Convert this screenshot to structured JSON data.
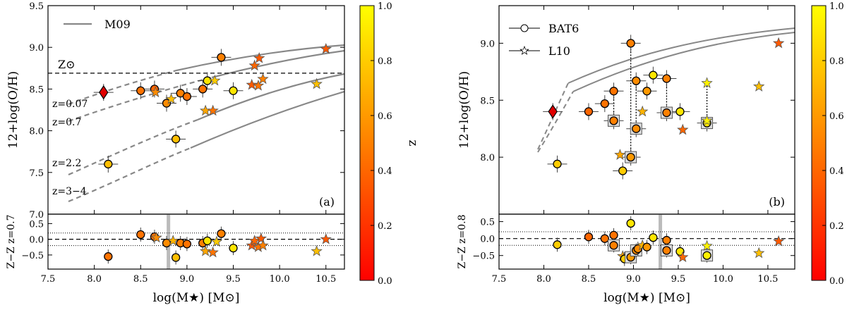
{
  "chart_data": [
    {
      "type": "scatter",
      "panel_label": "(a)",
      "top": {
        "xlim": [
          7.5,
          10.7
        ],
        "ylim": [
          7.0,
          9.5
        ],
        "ylabel": "12+log(O/H)",
        "x_ticks": [
          "7.5",
          "8.0",
          "8.5",
          "9.0",
          "9.5",
          "10.0",
          "10.5"
        ],
        "y_ticks": [
          {
            "v": 7.0,
            "t": "7.0"
          },
          {
            "v": 7.5,
            "t": "7.5"
          },
          {
            "v": 8.0,
            "t": "8.0"
          },
          {
            "v": 8.5,
            "t": "8.5"
          },
          {
            "v": 9.0,
            "t": "9.0"
          },
          {
            "v": 9.5,
            "t": "9.5"
          }
        ],
        "solar_line": {
          "y": 8.69,
          "label": "Z⊙"
        },
        "legend": [
          {
            "name": "M09",
            "marker": "line"
          }
        ],
        "curve_labels": [
          "z=0.07",
          "z=0.7",
          "z=2.2",
          "z=3−4"
        ],
        "series": [
          {
            "name": "circles",
            "points": [
              {
                "x": 8.5,
                "y": 8.48,
                "z": 0.45
              },
              {
                "x": 8.65,
                "y": 8.5,
                "z": 0.4
              },
              {
                "x": 8.78,
                "y": 8.33,
                "z": 0.55
              },
              {
                "x": 8.93,
                "y": 8.45,
                "z": 0.5
              },
              {
                "x": 9.0,
                "y": 8.41,
                "z": 0.45
              },
              {
                "x": 9.17,
                "y": 8.5,
                "z": 0.45
              },
              {
                "x": 9.22,
                "y": 8.6,
                "z": 0.9
              },
              {
                "x": 9.37,
                "y": 8.88,
                "z": 0.5
              },
              {
                "x": 9.5,
                "y": 8.48,
                "z": 0.9
              },
              {
                "x": 8.88,
                "y": 7.9,
                "z": 0.75
              },
              {
                "x": 8.15,
                "y": 7.6,
                "z": 0.75
              }
            ]
          },
          {
            "name": "stars",
            "points": [
              {
                "x": 8.66,
                "y": 8.46,
                "z": 0.55
              },
              {
                "x": 8.83,
                "y": 8.38,
                "z": 0.75
              },
              {
                "x": 9.2,
                "y": 8.24,
                "z": 0.65
              },
              {
                "x": 9.28,
                "y": 8.24,
                "z": 0.45
              },
              {
                "x": 9.3,
                "y": 8.6,
                "z": 0.8
              },
              {
                "x": 9.7,
                "y": 8.55,
                "z": 0.35
              },
              {
                "x": 9.73,
                "y": 8.78,
                "z": 0.4
              },
              {
                "x": 9.77,
                "y": 8.54,
                "z": 0.45
              },
              {
                "x": 9.78,
                "y": 8.87,
                "z": 0.35
              },
              {
                "x": 9.82,
                "y": 8.62,
                "z": 0.5
              },
              {
                "x": 10.4,
                "y": 8.56,
                "z": 0.75
              },
              {
                "x": 10.5,
                "y": 8.98,
                "z": 0.35
              }
            ]
          },
          {
            "name": "diamond",
            "points": [
              {
                "x": 8.1,
                "y": 8.46,
                "z": 0.07
              }
            ]
          }
        ]
      },
      "bottom": {
        "ylabel": "Z−Z z=0.7",
        "ylim": [
          -0.95,
          0.8
        ],
        "y_ticks": [
          {
            "v": 0.5,
            "t": "0.5"
          },
          {
            "v": 0.0,
            "t": "0.0"
          },
          {
            "v": -0.5,
            "t": "−0.5"
          }
        ],
        "vline_x": 8.8,
        "xlabel": "log(M★) [M⊙]",
        "points": [
          {
            "x": 8.5,
            "y": 0.15,
            "z": 0.45,
            "m": "c"
          },
          {
            "x": 8.65,
            "y": 0.08,
            "z": 0.45,
            "m": "c"
          },
          {
            "x": 8.67,
            "y": 0.05,
            "z": 0.55,
            "m": "s"
          },
          {
            "x": 8.78,
            "y": -0.12,
            "z": 0.55,
            "m": "c"
          },
          {
            "x": 8.85,
            "y": -0.05,
            "z": 0.7,
            "m": "s"
          },
          {
            "x": 8.88,
            "y": -0.58,
            "z": 0.75,
            "m": "c"
          },
          {
            "x": 8.93,
            "y": -0.12,
            "z": 0.5,
            "m": "c"
          },
          {
            "x": 9.0,
            "y": -0.15,
            "z": 0.45,
            "m": "c"
          },
          {
            "x": 9.17,
            "y": -0.12,
            "z": 0.5,
            "m": "c"
          },
          {
            "x": 9.2,
            "y": -0.38,
            "z": 0.65,
            "m": "s"
          },
          {
            "x": 9.22,
            "y": -0.05,
            "z": 0.9,
            "m": "c"
          },
          {
            "x": 9.28,
            "y": -0.42,
            "z": 0.45,
            "m": "s"
          },
          {
            "x": 9.32,
            "y": -0.08,
            "z": 0.8,
            "m": "s"
          },
          {
            "x": 9.37,
            "y": 0.18,
            "z": 0.5,
            "m": "c"
          },
          {
            "x": 9.5,
            "y": -0.28,
            "z": 0.9,
            "m": "c"
          },
          {
            "x": 9.7,
            "y": -0.2,
            "z": 0.35,
            "m": "s"
          },
          {
            "x": 9.73,
            "y": -0.05,
            "z": 0.4,
            "m": "s"
          },
          {
            "x": 9.77,
            "y": -0.25,
            "z": 0.45,
            "m": "s"
          },
          {
            "x": 9.8,
            "y": 0.02,
            "z": 0.35,
            "m": "s"
          },
          {
            "x": 9.82,
            "y": -0.2,
            "z": 0.5,
            "m": "s"
          },
          {
            "x": 10.4,
            "y": -0.38,
            "z": 0.75,
            "m": "s"
          },
          {
            "x": 10.5,
            "y": 0.0,
            "z": 0.35,
            "m": "s"
          },
          {
            "x": 8.15,
            "y": -0.55,
            "z": 0.45,
            "m": "c"
          }
        ]
      },
      "colorbar": {
        "label": "z",
        "ticks": [
          "0.0",
          "0.2",
          "0.4",
          "0.6",
          "0.8",
          "1.0"
        ]
      }
    },
    {
      "type": "scatter",
      "panel_label": "(b)",
      "top": {
        "xlim": [
          7.5,
          10.8
        ],
        "ylim": [
          7.5,
          9.33
        ],
        "ylabel": "12+log(O/H)",
        "x_ticks": [
          "7.5",
          "8.0",
          "8.5",
          "9.0",
          "9.5",
          "10.0",
          "10.5"
        ],
        "y_ticks": [
          {
            "v": 8.0,
            "t": "8.0"
          },
          {
            "v": 8.5,
            "t": "8.5"
          },
          {
            "v": 9.0,
            "t": "9.0"
          }
        ],
        "legend": [
          {
            "name": "BAT6",
            "marker": "circle"
          },
          {
            "name": "L10",
            "marker": "star"
          }
        ],
        "series": [
          {
            "name": "circles",
            "points": [
              {
                "x": 8.5,
                "y": 8.4,
                "z": 0.4
              },
              {
                "x": 8.68,
                "y": 8.47,
                "z": 0.45
              },
              {
                "x": 8.78,
                "y": 8.58,
                "z": 0.45
              },
              {
                "x": 8.97,
                "y": 9.0,
                "z": 0.5
              },
              {
                "x": 9.03,
                "y": 8.67,
                "z": 0.55
              },
              {
                "x": 9.15,
                "y": 8.58,
                "z": 0.6
              },
              {
                "x": 9.22,
                "y": 8.72,
                "z": 0.9
              },
              {
                "x": 9.37,
                "y": 8.69,
                "z": 0.5
              },
              {
                "x": 9.52,
                "y": 8.4,
                "z": 0.9
              },
              {
                "x": 8.88,
                "y": 7.88,
                "z": 0.8
              },
              {
                "x": 8.15,
                "y": 7.94,
                "z": 0.8
              }
            ]
          },
          {
            "name": "boxed",
            "points": [
              {
                "x": 8.78,
                "y": 8.32,
                "z": 0.5
              },
              {
                "x": 8.97,
                "y": 8.0,
                "z": 0.6
              },
              {
                "x": 9.03,
                "y": 8.25,
                "z": 0.55
              },
              {
                "x": 9.37,
                "y": 8.39,
                "z": 0.5
              },
              {
                "x": 9.82,
                "y": 8.3,
                "z": 0.9
              }
            ]
          },
          {
            "name": "stars",
            "points": [
              {
                "x": 8.85,
                "y": 8.02,
                "z": 0.65
              },
              {
                "x": 9.1,
                "y": 8.4,
                "z": 0.7
              },
              {
                "x": 9.55,
                "y": 8.24,
                "z": 0.4
              },
              {
                "x": 9.82,
                "y": 8.65,
                "z": 0.95
              },
              {
                "x": 9.82,
                "y": 8.32,
                "z": 0.95
              },
              {
                "x": 10.4,
                "y": 8.62,
                "z": 0.75
              },
              {
                "x": 10.62,
                "y": 9.0,
                "z": 0.35
              }
            ]
          },
          {
            "name": "diamond",
            "points": [
              {
                "x": 8.1,
                "y": 8.4,
                "z": 0.07
              }
            ]
          }
        ]
      },
      "bottom": {
        "ylabel": "Z−Z z=0.8",
        "ylim": [
          -0.9,
          0.72
        ],
        "y_ticks": [
          {
            "v": 0.5,
            "t": "0.5"
          },
          {
            "v": 0.0,
            "t": "0.0"
          },
          {
            "v": -0.5,
            "t": "−0.5"
          }
        ],
        "vline_x": 9.3,
        "xlabel": "log(M★) [M⊙]",
        "points": [
          {
            "x": 8.5,
            "y": 0.05,
            "z": 0.4,
            "m": "c"
          },
          {
            "x": 8.68,
            "y": 0.0,
            "z": 0.45,
            "m": "c"
          },
          {
            "x": 8.78,
            "y": 0.1,
            "z": 0.45,
            "m": "c"
          },
          {
            "x": 8.78,
            "y": -0.2,
            "z": 0.5,
            "m": "b"
          },
          {
            "x": 8.88,
            "y": -0.52,
            "z": 0.65,
            "m": "s"
          },
          {
            "x": 8.9,
            "y": -0.6,
            "z": 0.8,
            "m": "c"
          },
          {
            "x": 8.97,
            "y": 0.45,
            "z": 0.9,
            "m": "c"
          },
          {
            "x": 8.97,
            "y": -0.55,
            "z": 0.6,
            "m": "b"
          },
          {
            "x": 9.03,
            "y": -0.35,
            "z": 0.55,
            "m": "b"
          },
          {
            "x": 9.05,
            "y": -0.3,
            "z": 0.55,
            "m": "c"
          },
          {
            "x": 9.1,
            "y": -0.2,
            "z": 0.7,
            "m": "s"
          },
          {
            "x": 9.15,
            "y": -0.25,
            "z": 0.6,
            "m": "c"
          },
          {
            "x": 9.22,
            "y": 0.03,
            "z": 0.9,
            "m": "c"
          },
          {
            "x": 9.37,
            "y": -0.05,
            "z": 0.5,
            "m": "c"
          },
          {
            "x": 9.37,
            "y": -0.35,
            "z": 0.5,
            "m": "b"
          },
          {
            "x": 9.52,
            "y": -0.38,
            "z": 0.9,
            "m": "c"
          },
          {
            "x": 9.55,
            "y": -0.55,
            "z": 0.4,
            "m": "s"
          },
          {
            "x": 9.82,
            "y": -0.22,
            "z": 0.95,
            "m": "s"
          },
          {
            "x": 9.82,
            "y": -0.5,
            "z": 0.95,
            "m": "b"
          },
          {
            "x": 10.4,
            "y": -0.43,
            "z": 0.75,
            "m": "s"
          },
          {
            "x": 10.62,
            "y": -0.08,
            "z": 0.35,
            "m": "s"
          },
          {
            "x": 8.15,
            "y": -0.18,
            "z": 0.8,
            "m": "c"
          }
        ]
      },
      "colorbar": {
        "label": "z",
        "ticks": [
          "0.0",
          "0.2",
          "0.4",
          "0.6",
          "0.8",
          "1.0"
        ]
      }
    }
  ]
}
